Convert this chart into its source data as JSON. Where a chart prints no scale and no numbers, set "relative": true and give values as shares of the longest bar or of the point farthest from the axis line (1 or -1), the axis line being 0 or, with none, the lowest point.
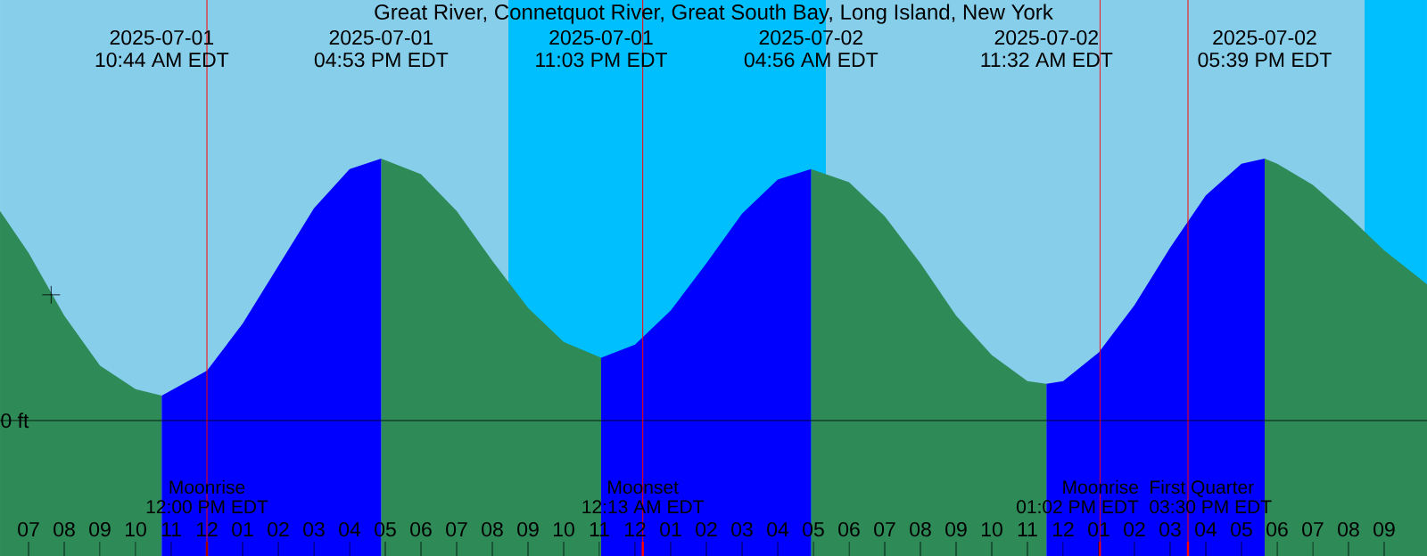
{
  "chart_data": {
    "type": "area",
    "relative": true,
    "title": "Great River, Connetquot River, Great South Bay, Long Island, New York",
    "xlim": [
      "2025-07-01T06:12",
      "2025-07-02T22:12"
    ],
    "xticks": [
      {
        "value": "2025-07-01T07:00",
        "label": "07"
      },
      {
        "value": "2025-07-01T08:00",
        "label": "08"
      },
      {
        "value": "2025-07-01T09:00",
        "label": "09"
      },
      {
        "value": "2025-07-01T10:00",
        "label": "10"
      },
      {
        "value": "2025-07-01T11:00",
        "label": "11"
      },
      {
        "value": "2025-07-01T12:00",
        "label": "12"
      },
      {
        "value": "2025-07-01T13:00",
        "label": "01"
      },
      {
        "value": "2025-07-01T14:00",
        "label": "02"
      },
      {
        "value": "2025-07-01T15:00",
        "label": "03"
      },
      {
        "value": "2025-07-01T16:00",
        "label": "04"
      },
      {
        "value": "2025-07-01T17:00",
        "label": "05"
      },
      {
        "value": "2025-07-01T18:00",
        "label": "06"
      },
      {
        "value": "2025-07-01T19:00",
        "label": "07"
      },
      {
        "value": "2025-07-01T20:00",
        "label": "08"
      },
      {
        "value": "2025-07-01T21:00",
        "label": "09"
      },
      {
        "value": "2025-07-01T22:00",
        "label": "10"
      },
      {
        "value": "2025-07-01T23:00",
        "label": "11"
      },
      {
        "value": "2025-07-02T00:00",
        "label": "12"
      },
      {
        "value": "2025-07-02T01:00",
        "label": "01"
      },
      {
        "value": "2025-07-02T02:00",
        "label": "02"
      },
      {
        "value": "2025-07-02T03:00",
        "label": "03"
      },
      {
        "value": "2025-07-02T04:00",
        "label": "04"
      },
      {
        "value": "2025-07-02T05:00",
        "label": "05"
      },
      {
        "value": "2025-07-02T06:00",
        "label": "06"
      },
      {
        "value": "2025-07-02T07:00",
        "label": "07"
      },
      {
        "value": "2025-07-02T08:00",
        "label": "08"
      },
      {
        "value": "2025-07-02T09:00",
        "label": "09"
      },
      {
        "value": "2025-07-02T10:00",
        "label": "10"
      },
      {
        "value": "2025-07-02T11:00",
        "label": "11"
      },
      {
        "value": "2025-07-02T12:00",
        "label": "12"
      },
      {
        "value": "2025-07-02T13:00",
        "label": "01"
      },
      {
        "value": "2025-07-02T14:00",
        "label": "02"
      },
      {
        "value": "2025-07-02T15:00",
        "label": "03"
      },
      {
        "value": "2025-07-02T16:00",
        "label": "04"
      },
      {
        "value": "2025-07-02T17:00",
        "label": "05"
      },
      {
        "value": "2025-07-02T18:00",
        "label": "06"
      },
      {
        "value": "2025-07-02T19:00",
        "label": "07"
      },
      {
        "value": "2025-07-02T20:00",
        "label": "08"
      },
      {
        "value": "2025-07-02T21:00",
        "label": "09"
      }
    ],
    "tick_labels": "x",
    "bands": [
      {
        "axis": "x",
        "from": "2025-07-01T20:27",
        "to": "2025-07-02T05:21",
        "color": "#00bfff"
      },
      {
        "axis": "x",
        "from": "2025-07-02T20:27",
        "to": "2025-07-02T22:12",
        "color": "#00bfff"
      }
    ],
    "ref_lines": [
      {
        "axis": "y",
        "value": 0,
        "label": "0 ft",
        "color": "#000000"
      },
      {
        "axis": "x",
        "value": "2025-07-01T12:00",
        "label": "Moonrise",
        "color": "#ff0000"
      },
      {
        "axis": "x",
        "value": "2025-07-02T00:13",
        "label": "Moonset",
        "color": "#ff0000"
      },
      {
        "axis": "x",
        "value": "2025-07-02T13:02",
        "label": "Moonrise",
        "color": "#ff0000"
      },
      {
        "axis": "x",
        "value": "2025-07-02T15:30",
        "label": "First Quarter",
        "color": "#ff0000"
      }
    ],
    "series": [
      {
        "color": "#2e8b57",
        "x": [
          "2025-07-01T06:12",
          "2025-07-01T07:00",
          "2025-07-01T08:00",
          "2025-07-01T09:00",
          "2025-07-01T10:00",
          "2025-07-01T10:44",
          null,
          "2025-07-01T16:53",
          "2025-07-01T18:00",
          "2025-07-01T19:00",
          "2025-07-01T20:00",
          "2025-07-01T21:00",
          "2025-07-01T22:00",
          "2025-07-01T23:03",
          null,
          "2025-07-02T04:56",
          "2025-07-02T06:00",
          "2025-07-02T07:00",
          "2025-07-02T08:00",
          "2025-07-02T09:00",
          "2025-07-02T10:00",
          "2025-07-02T11:00",
          "2025-07-02T11:32",
          null,
          "2025-07-02T17:39",
          "2025-07-02T18:00",
          "2025-07-02T19:00",
          "2025-07-02T20:00",
          "2025-07-02T21:00",
          "2025-07-02T22:12"
        ],
        "values": [
          0.8,
          0.64,
          0.4,
          0.21,
          0.12,
          0.095,
          null,
          1.0,
          0.94,
          0.8,
          0.61,
          0.43,
          0.3,
          0.24,
          null,
          0.96,
          0.91,
          0.78,
          0.6,
          0.4,
          0.25,
          0.15,
          0.14,
          null,
          1.0,
          0.98,
          0.9,
          0.78,
          0.65,
          0.52
        ]
      },
      {
        "color": "#0000ff",
        "x": [
          "2025-07-01T10:44",
          "2025-07-01T12:00",
          "2025-07-01T13:00",
          "2025-07-01T14:00",
          "2025-07-01T15:00",
          "2025-07-01T16:00",
          "2025-07-01T16:53",
          null,
          "2025-07-01T23:03",
          "2025-07-02T00:00",
          "2025-07-02T01:00",
          "2025-07-02T02:00",
          "2025-07-02T03:00",
          "2025-07-02T04:00",
          "2025-07-02T04:56",
          null,
          "2025-07-02T11:32",
          "2025-07-02T12:00",
          "2025-07-02T13:00",
          "2025-07-02T14:00",
          "2025-07-02T15:00",
          "2025-07-02T16:00",
          "2025-07-02T17:00",
          "2025-07-02T17:39"
        ],
        "values": [
          0.095,
          0.19,
          0.37,
          0.59,
          0.81,
          0.96,
          1.0,
          null,
          0.24,
          0.29,
          0.42,
          0.6,
          0.79,
          0.92,
          0.96,
          null,
          0.14,
          0.15,
          0.26,
          0.44,
          0.66,
          0.86,
          0.98,
          1.0
        ]
      },
      {
        "type": "scatter",
        "marker": "cross",
        "color": "#000000",
        "x": [
          "2025-07-01T07:38"
        ],
        "values": [
          0.48
        ]
      }
    ],
    "annotations": [
      "2025-07-01",
      "10:44 AM EDT",
      "2025-07-01",
      "04:53 PM EDT",
      "2025-07-01",
      "11:03 PM EDT",
      "2025-07-02",
      "04:56 AM EDT",
      "2025-07-02",
      "11:32 AM EDT",
      "2025-07-02",
      "05:39 PM EDT",
      "12:00 PM EDT",
      "12:13 AM EDT",
      "01:02 PM EDT",
      "03:30 PM EDT"
    ]
  }
}
